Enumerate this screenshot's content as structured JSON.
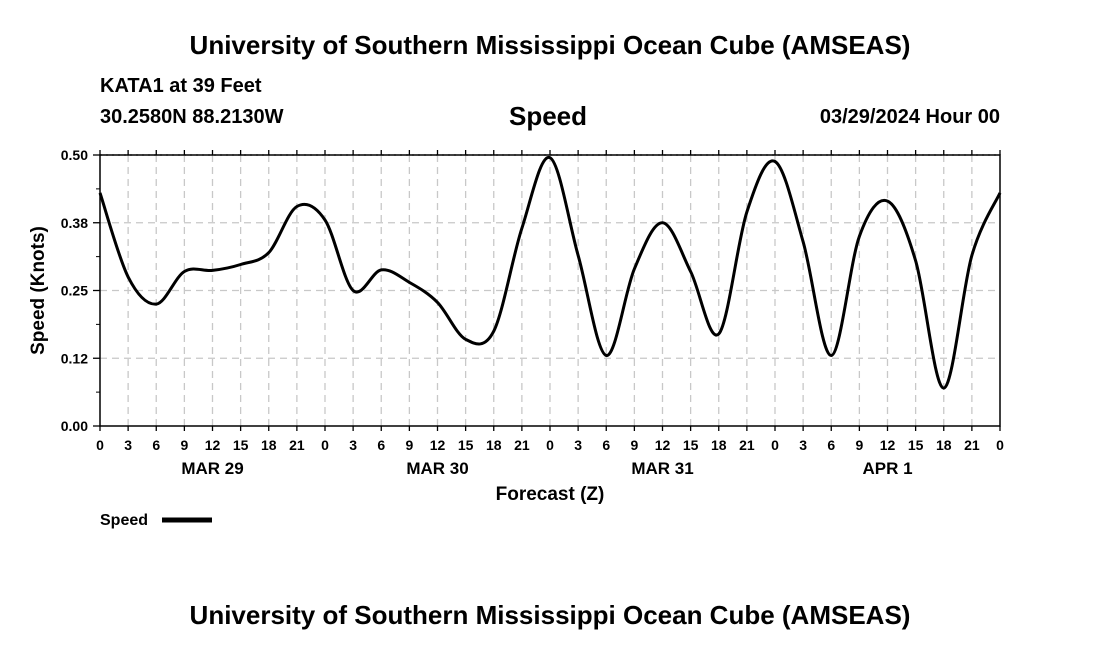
{
  "header": {
    "title": "University of Southern Mississippi Ocean Cube (AMSEAS)",
    "station": "KATA1 at 39 Feet",
    "coords": "30.2580N  88.2130W",
    "variable": "Speed",
    "datetime": "03/29/2024 Hour 00"
  },
  "footer": {
    "title": "University of Southern Mississippi Ocean Cube (AMSEAS)"
  },
  "chart_data": {
    "type": "line",
    "title": "Speed",
    "xlabel": "Forecast (Z)",
    "ylabel": "Speed (Knots)",
    "xlim": [
      0,
      96
    ],
    "ylim": [
      0,
      0.5
    ],
    "grid": true,
    "legend_position": "bottom-left",
    "y_ticks": [
      0.0,
      0.125,
      0.25,
      0.375,
      0.5
    ],
    "y_tick_labels": [
      "0.00",
      "0.12",
      "0.25",
      "0.38",
      "0.50"
    ],
    "x_ticks": [
      0,
      3,
      6,
      9,
      12,
      15,
      18,
      21,
      24,
      27,
      30,
      33,
      36,
      39,
      42,
      45,
      48,
      51,
      54,
      57,
      60,
      63,
      66,
      69,
      72,
      75,
      78,
      81,
      84,
      87,
      90,
      93,
      96
    ],
    "x_tick_labels": [
      "0",
      "3",
      "6",
      "9",
      "12",
      "15",
      "18",
      "21",
      "0",
      "3",
      "6",
      "9",
      "12",
      "15",
      "18",
      "21",
      "0",
      "3",
      "6",
      "9",
      "12",
      "15",
      "18",
      "21",
      "0",
      "3",
      "6",
      "9",
      "12",
      "15",
      "18",
      "21",
      "0"
    ],
    "date_labels": [
      {
        "x": 12,
        "label": "MAR 29"
      },
      {
        "x": 36,
        "label": "MAR 30"
      },
      {
        "x": 60,
        "label": "MAR 31"
      },
      {
        "x": 84,
        "label": "APR 1"
      }
    ],
    "series": [
      {
        "name": "Speed",
        "color": "#000000",
        "x": [
          0,
          3,
          6,
          9,
          12,
          15,
          18,
          21,
          24,
          27,
          30,
          33,
          36,
          39,
          42,
          45,
          48,
          51,
          54,
          57,
          60,
          63,
          66,
          69,
          72,
          75,
          78,
          81,
          84,
          87,
          90,
          93,
          96
        ],
        "y": [
          0.43,
          0.275,
          0.225,
          0.285,
          0.287,
          0.298,
          0.32,
          0.405,
          0.38,
          0.25,
          0.288,
          0.265,
          0.228,
          0.16,
          0.175,
          0.365,
          0.495,
          0.315,
          0.13,
          0.29,
          0.375,
          0.285,
          0.17,
          0.395,
          0.488,
          0.34,
          0.13,
          0.35,
          0.415,
          0.305,
          0.07,
          0.315,
          0.43
        ]
      }
    ]
  }
}
